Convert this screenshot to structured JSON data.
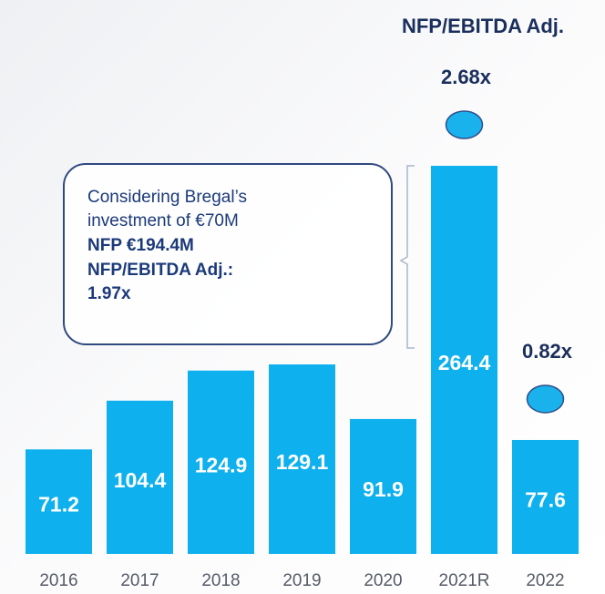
{
  "chart_data": {
    "type": "bar",
    "title": "NFP/EBITDA Adj.",
    "categories": [
      "2016",
      "2017",
      "2018",
      "2019",
      "2020",
      "2021R",
      "2022"
    ],
    "values": [
      71.2,
      104.4,
      124.9,
      129.1,
      91.9,
      264.4,
      77.6
    ],
    "color": "#0eb0ee",
    "ylim": [
      0,
      264.4
    ],
    "ratios": {
      "values": [
        null,
        null,
        null,
        null,
        null,
        2.68,
        0.82
      ],
      "value_labels": [
        null,
        null,
        null,
        null,
        null,
        "2.68x",
        "0.82x"
      ]
    },
    "annotation": [
      "Considering Bregal’s",
      "investment of €70M",
      "NFP €194.4M",
      "NFP/EBITDA Adj.:",
      "1.97x"
    ]
  }
}
